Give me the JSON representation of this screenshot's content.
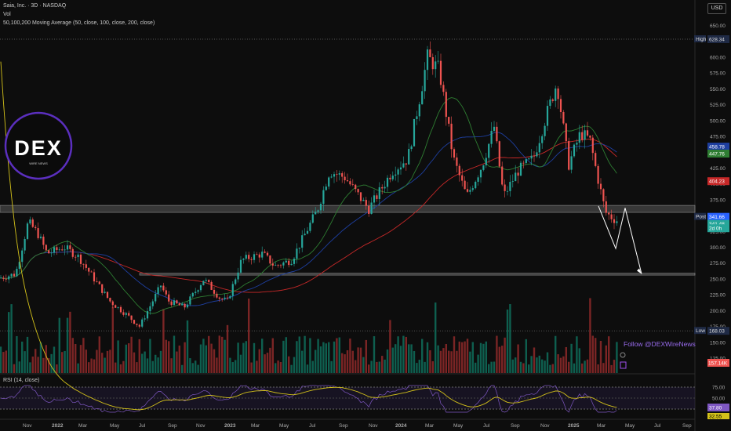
{
  "header": {
    "title": "Saia, Inc. · 3D · NASDAQ",
    "vol": "Vol",
    "ma": "50,100,200 Moving Average (50, close, 100, close, 200, close)",
    "rsi": "RSI (14, close)"
  },
  "currency": "USD",
  "watermark": {
    "logo": "DEX",
    "sub": "WIRE NEWS",
    "follow": "Follow @DEXWireNews"
  },
  "chart_data": {
    "type": "candlestick",
    "x_ticks": [
      "Nov",
      "2022",
      "Mar",
      "May",
      "Jul",
      "Sep",
      "Nov",
      "2023",
      "Mar",
      "May",
      "Jul",
      "Sep",
      "Nov",
      "2024",
      "Mar",
      "May",
      "Jul",
      "Sep",
      "Nov",
      "2025",
      "Mar",
      "May",
      "Jul",
      "Sep"
    ],
    "price_ticks": [
      650,
      625,
      600,
      575,
      550,
      525,
      500,
      475,
      450,
      425,
      400,
      375,
      350,
      325,
      300,
      275,
      250,
      225,
      200,
      175,
      150,
      125
    ],
    "rsi_ticks": [
      75,
      50,
      25
    ],
    "price_labels": {
      "high": {
        "label": "High",
        "value": "628.34"
      },
      "ma50": {
        "value": "458.78"
      },
      "ma100": {
        "value": "447.76"
      },
      "ma200": {
        "value": "404.23"
      },
      "post": {
        "label": "Post",
        "value": "341.66"
      },
      "close": {
        "value": "341.48"
      },
      "countdown": {
        "value": "2d 0h"
      },
      "low": {
        "label": "Low",
        "value": "168.03"
      },
      "vol": {
        "value": "157.14K"
      },
      "rsi": {
        "value": "37.80"
      },
      "rsi_ma": {
        "value": "32.55"
      }
    },
    "support_zones": [
      {
        "from": 355,
        "to": 366
      },
      {
        "from": 256,
        "to": 259
      }
    ],
    "projection": [
      {
        "t": "2025-03",
        "v": 365
      },
      {
        "t": "2025-04",
        "v": 298
      },
      {
        "t": "2025-04b",
        "v": 362
      },
      {
        "t": "2025-05",
        "v": 258
      }
    ],
    "closes_approx": [
      {
        "t": "2021-10",
        "v": 250
      },
      {
        "t": "2021-11",
        "v": 340
      },
      {
        "t": "2022-01",
        "v": 300
      },
      {
        "t": "2022-03",
        "v": 250
      },
      {
        "t": "2022-05",
        "v": 200
      },
      {
        "t": "2022-07",
        "v": 220
      },
      {
        "t": "2022-08",
        "v": 250
      },
      {
        "t": "2022-10",
        "v": 210
      },
      {
        "t": "2022-12",
        "v": 230
      },
      {
        "t": "2023-02",
        "v": 290
      },
      {
        "t": "2023-05",
        "v": 290
      },
      {
        "t": "2023-07",
        "v": 400
      },
      {
        "t": "2023-08",
        "v": 430
      },
      {
        "t": "2023-11",
        "v": 360
      },
      {
        "t": "2024-01",
        "v": 440
      },
      {
        "t": "2024-03",
        "v": 600
      },
      {
        "t": "2024-04",
        "v": 580
      },
      {
        "t": "2024-05",
        "v": 420
      },
      {
        "t": "2024-07",
        "v": 430
      },
      {
        "t": "2024-08",
        "v": 380
      },
      {
        "t": "2024-10",
        "v": 440
      },
      {
        "t": "2024-12",
        "v": 570
      },
      {
        "t": "2025-01",
        "v": 470
      },
      {
        "t": "2025-02",
        "v": 500
      },
      {
        "t": "2025-03",
        "v": 370
      },
      {
        "t": "2025-04",
        "v": 341
      }
    ],
    "ylim": [
      115,
      665
    ],
    "grid": false
  }
}
